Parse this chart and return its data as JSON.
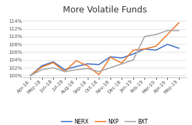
{
  "title": "More Volatile Funds",
  "x_labels": [
    "Apr-18",
    "May-18",
    "Jun-18",
    "Jul-18",
    "Aug-18",
    "Sep-18",
    "Oct-18",
    "Nov-18",
    "Dec-18",
    "Jan-19",
    "Feb-19",
    "Mar-19",
    "Apr-19",
    "May-19"
  ],
  "series": {
    "NERX": {
      "color": "#4472C4",
      "values": [
        100.0,
        102.5,
        103.5,
        101.5,
        102.3,
        103.0,
        102.8,
        104.8,
        104.5,
        105.5,
        106.8,
        106.5,
        108.0,
        107.0
      ]
    },
    "NXP": {
      "color": "#ED7D31",
      "values": [
        100.0,
        102.2,
        103.3,
        101.0,
        103.8,
        102.5,
        100.2,
        104.7,
        103.2,
        106.5,
        106.8,
        107.5,
        110.5,
        113.5
      ]
    },
    "BXT": {
      "color": "#A5A5A5",
      "values": [
        100.0,
        101.5,
        102.0,
        101.0,
        101.5,
        101.8,
        101.0,
        102.0,
        103.0,
        104.0,
        110.0,
        110.5,
        111.5,
        111.5
      ]
    }
  },
  "ylim": [
    99.5,
    115.5
  ],
  "yticks": [
    100,
    102,
    104,
    106,
    108,
    110,
    112,
    114
  ],
  "background_color": "#ffffff",
  "legend_labels": [
    "NERX",
    "NXP",
    "BXT"
  ],
  "title_fontsize": 9,
  "tick_fontsize": 5,
  "legend_fontsize": 5.5,
  "linewidth": 1.2
}
